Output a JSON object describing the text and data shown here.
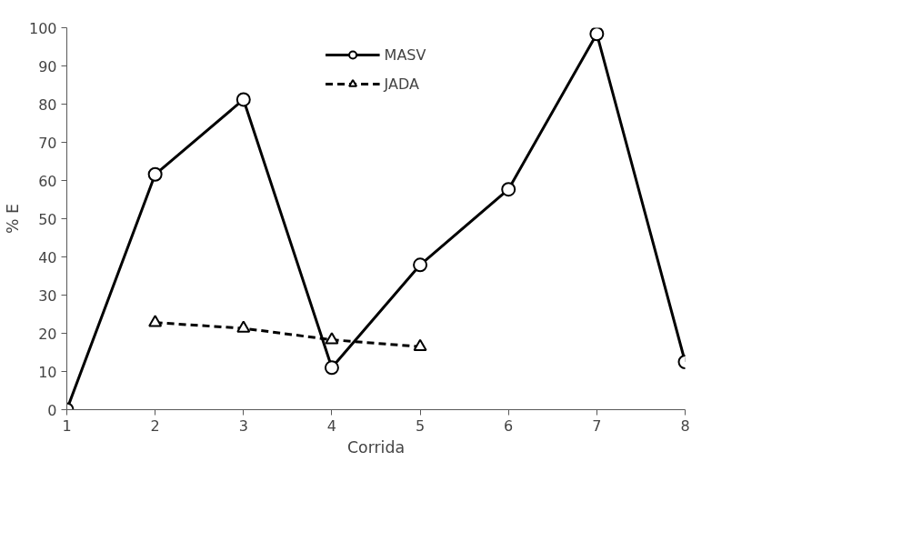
{
  "chart_data": {
    "type": "line",
    "xlabel": "Corrida",
    "ylabel": "% E",
    "xlim": [
      1,
      8
    ],
    "xticks": [
      1,
      2,
      3,
      4,
      5,
      6,
      7,
      8
    ],
    "ylim": [
      0,
      100
    ],
    "yticks": [
      0,
      10,
      20,
      30,
      40,
      50,
      60,
      70,
      80,
      90,
      100
    ],
    "grid": false,
    "legend": "top",
    "series": [
      {
        "name": "MASV",
        "color": "#000000",
        "x": [
          1,
          2,
          3,
          4,
          5,
          6,
          7,
          8
        ],
        "values": [
          0,
          61.6,
          81.2,
          11.0,
          37.9,
          57.7,
          98.4,
          12.5
        ],
        "marker": "circle",
        "line_style": "solid"
      },
      {
        "name": "JADA",
        "color": "#000000",
        "x": [
          2,
          3,
          4,
          5
        ],
        "values": [
          22.8,
          21.3,
          18.3,
          16.5
        ],
        "marker": "triangle",
        "line_style": "dashed"
      }
    ]
  }
}
